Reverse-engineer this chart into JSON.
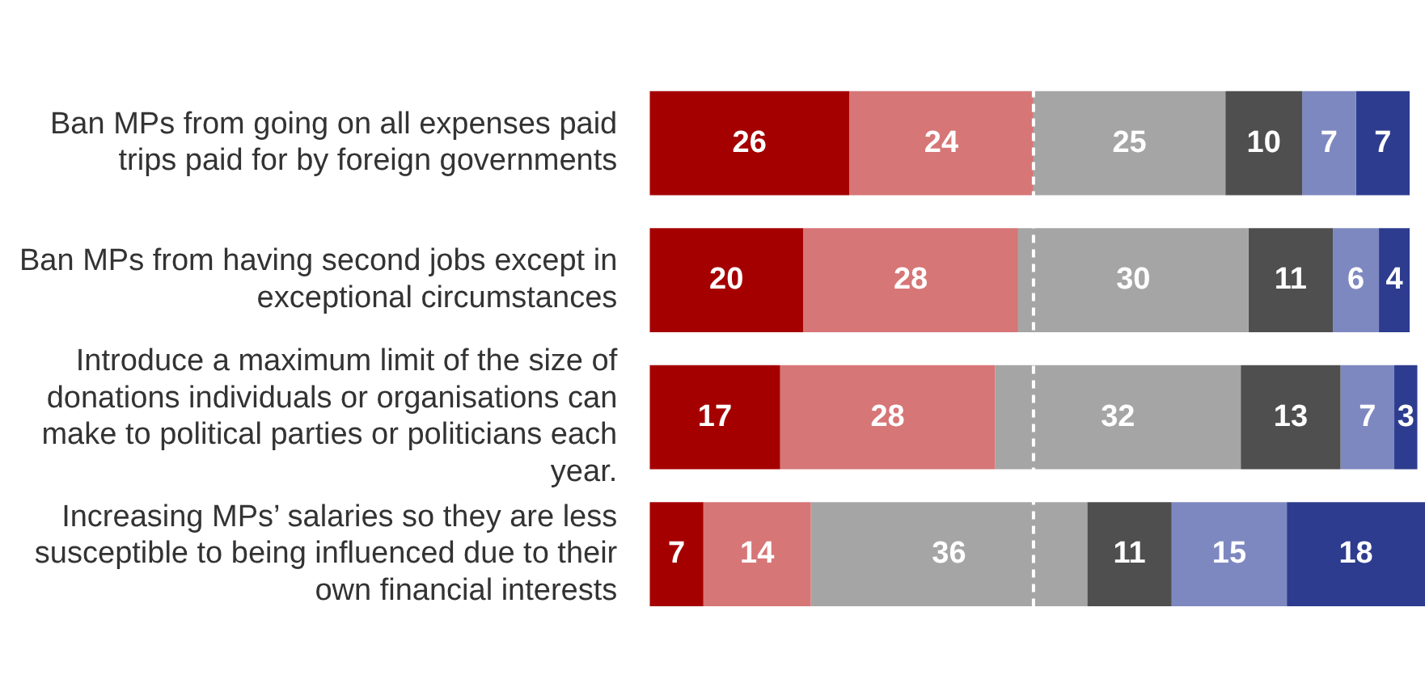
{
  "chart_data": {
    "type": "bar",
    "orientation": "horizontal",
    "stacked": true,
    "categories": [
      "Ban MPs from going on all expenses paid trips paid for by foreign governments",
      "Ban MPs from having second jobs except in exceptional circumstances",
      "Introduce a maximum limit of the size of donations individuals or organisations can make to political parties or politicians each year.",
      "Increasing MPs’ salaries so they are less susceptible to being influenced due to their own financial interests"
    ],
    "series": [
      {
        "color": "#a50000",
        "values": [
          26,
          20,
          17,
          7
        ]
      },
      {
        "color": "#d67677",
        "values": [
          24,
          28,
          28,
          14
        ]
      },
      {
        "color": "#a5a5a5",
        "values": [
          25,
          30,
          32,
          36
        ]
      },
      {
        "color": "#4f4f4f",
        "values": [
          10,
          11,
          13,
          11
        ]
      },
      {
        "color": "#7e88c0",
        "values": [
          7,
          6,
          7,
          15
        ]
      },
      {
        "color": "#2d3c8e",
        "values": [
          7,
          4,
          3,
          18
        ]
      }
    ],
    "xlim": [
      0,
      101
    ],
    "data_labels": true,
    "tick_labels": "y",
    "ref_lines": [
      {
        "axis": "x",
        "value": 50,
        "color": "#ffffff",
        "line_style": "dashed"
      }
    ]
  }
}
